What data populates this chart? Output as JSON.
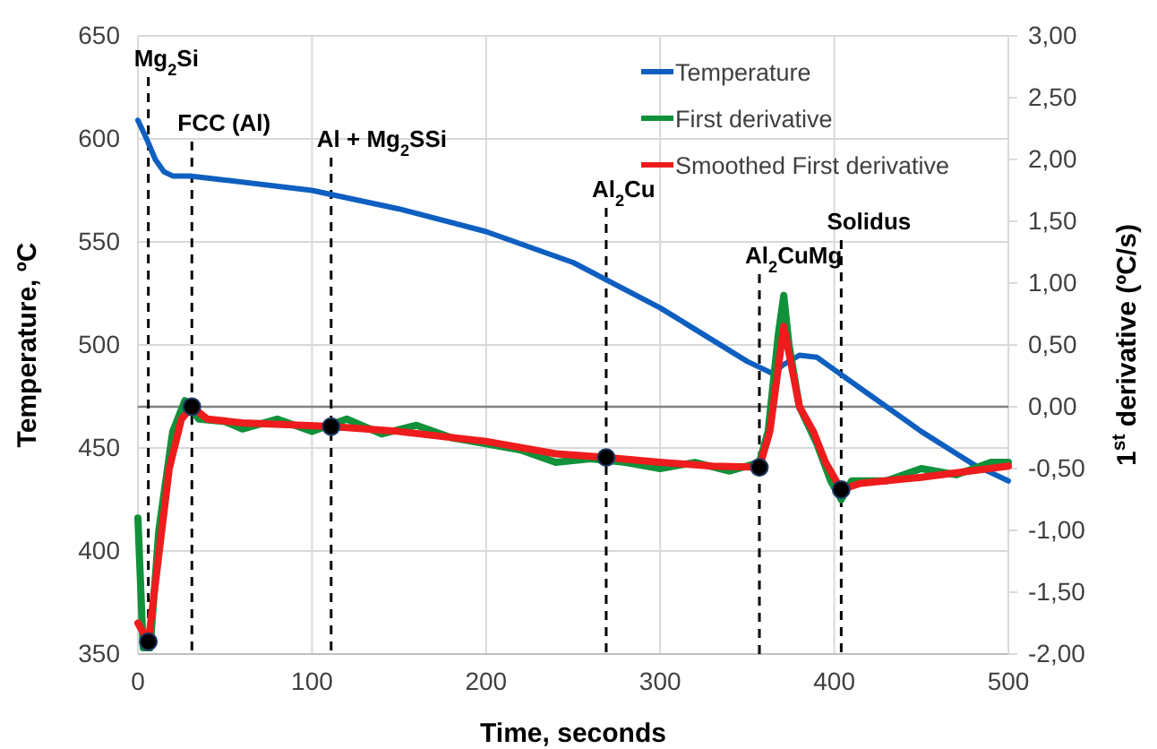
{
  "chart_data": {
    "type": "line",
    "xlabel": "Time, seconds",
    "ylabel": "Temperature, ºC",
    "y2label": "1$^{st}$ derivative (ºC/s)",
    "xlim": [
      0,
      500
    ],
    "xticks": [
      0,
      100,
      200,
      300,
      400,
      500
    ],
    "ylim": [
      350,
      650
    ],
    "yticks": [
      350,
      400,
      450,
      500,
      550,
      600,
      650
    ],
    "y2lim": [
      -2,
      3
    ],
    "y2ticks": [
      {
        "value": -2,
        "label": "-2,00"
      },
      {
        "value": -1.5,
        "label": "-1,50"
      },
      {
        "value": -1,
        "label": "-1,00"
      },
      {
        "value": -0.5,
        "label": "-0,50"
      },
      {
        "value": 0,
        "label": "0,00"
      },
      {
        "value": 0.5,
        "label": "0,50"
      },
      {
        "value": 1,
        "label": "1,00"
      },
      {
        "value": 1.5,
        "label": "1,50"
      },
      {
        "value": 2,
        "label": "2,00"
      },
      {
        "value": 2.5,
        "label": "2,50"
      },
      {
        "value": 3,
        "label": "3,00"
      }
    ],
    "grid": true,
    "legend": "top right",
    "marker": "none",
    "line_style": "solid",
    "series": [
      {
        "name": "Temperature",
        "color": "#0e5fc0",
        "x": [
          0,
          5,
          10,
          15,
          20,
          30,
          50,
          100,
          150,
          200,
          250,
          300,
          350,
          360,
          365,
          370,
          380,
          390,
          400,
          420,
          450,
          480,
          500
        ],
        "values": [
          609,
          600,
          590,
          584,
          582,
          582,
          580,
          575,
          566,
          555,
          540,
          518,
          492,
          488,
          486,
          490,
          495,
          494,
          488,
          476,
          458,
          442,
          434
        ]
      },
      {
        "name": "First derivative",
        "color": "#10913a",
        "axis": "y2",
        "x": [
          0,
          3,
          7,
          12,
          20,
          27,
          35,
          50,
          60,
          80,
          100,
          120,
          140,
          160,
          180,
          200,
          220,
          240,
          260,
          280,
          300,
          320,
          340,
          357,
          362,
          368,
          371,
          374,
          380,
          390,
          398,
          404,
          410,
          430,
          450,
          470,
          490,
          500
        ],
        "values": [
          -0.9,
          -1.95,
          -1.95,
          -1.0,
          -0.2,
          0.05,
          -0.1,
          -0.12,
          -0.18,
          -0.1,
          -0.2,
          -0.1,
          -0.22,
          -0.15,
          -0.25,
          -0.3,
          -0.35,
          -0.45,
          -0.42,
          -0.45,
          -0.5,
          -0.45,
          -0.52,
          -0.45,
          -0.2,
          0.6,
          0.9,
          0.5,
          0.0,
          -0.3,
          -0.6,
          -0.75,
          -0.6,
          -0.6,
          -0.5,
          -0.55,
          -0.45,
          -0.45
        ]
      },
      {
        "name": "Smoothed First derivative",
        "color": "#ee1c1c",
        "axis": "y2",
        "x": [
          0,
          6,
          12,
          18,
          25,
          31,
          40,
          60,
          111,
          150,
          200,
          240,
          269,
          300,
          330,
          357,
          363,
          371,
          380,
          388,
          395,
          404,
          415,
          450,
          500
        ],
        "values": [
          -1.75,
          -1.9,
          -1.2,
          -0.5,
          -0.1,
          0.0,
          -0.1,
          -0.13,
          -0.16,
          -0.2,
          -0.28,
          -0.38,
          -0.41,
          -0.45,
          -0.48,
          -0.49,
          -0.2,
          0.65,
          0.0,
          -0.2,
          -0.45,
          -0.67,
          -0.62,
          -0.57,
          -0.48
        ]
      },
      {
        "type": "scatter",
        "marker": "circle",
        "color": "#000000",
        "axis": "y2",
        "x": [
          6,
          31,
          111,
          269,
          357,
          404
        ],
        "values": [
          -1.9,
          0.0,
          -0.16,
          -0.41,
          -0.49,
          -0.67
        ]
      }
    ],
    "ref_lines": [
      {
        "axis": "y2",
        "value": 0,
        "label": null,
        "color": "#808080",
        "line_style": "solid"
      },
      {
        "axis": "x",
        "value": 6,
        "label": "Mg$_{2}$Si",
        "color": "#000000",
        "line_style": "dashed"
      },
      {
        "axis": "x",
        "value": 31,
        "label": "FCC (Al)",
        "color": "#000000",
        "line_style": "dashed"
      },
      {
        "axis": "x",
        "value": 111,
        "label": "Al + Mg$_{2}$SSi",
        "color": "#000000",
        "line_style": "dashed"
      },
      {
        "axis": "x",
        "value": 269,
        "label": "Al$_{2}$Cu",
        "color": "#000000",
        "line_style": "dashed"
      },
      {
        "axis": "x",
        "value": 357,
        "label": "Al$_{2}$CuMg",
        "color": "#000000",
        "line_style": "dashed"
      },
      {
        "axis": "x",
        "value": 404,
        "label": "Solidus",
        "color": "#000000",
        "line_style": "dashed"
      }
    ]
  }
}
